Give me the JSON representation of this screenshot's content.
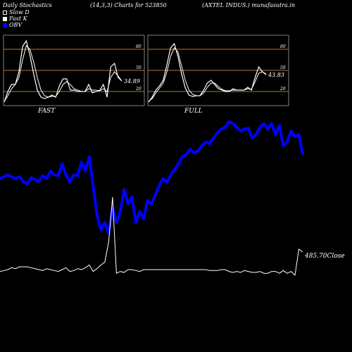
{
  "header": {
    "left": "Daily Stochastics",
    "center": "(14,3,3) Charts for 523850",
    "right": "(AXTEL INDUS.) munafasutra.in"
  },
  "legend": [
    {
      "label": "Slow  D",
      "icon": "hollow-square-icon"
    },
    {
      "label": "Fast K",
      "icon": "filled-square-icon"
    },
    {
      "label": "OBV",
      "icon": "blue-square-icon"
    }
  ],
  "colors": {
    "background": "#000000",
    "stoch": "#ffffff",
    "obv": "#0000ff",
    "levels": "#b87333",
    "panel_border": "#808080"
  },
  "chart_data": [
    {
      "type": "line",
      "title": "FAST",
      "ylim": [
        0,
        100
      ],
      "levels": [
        20,
        50,
        80
      ],
      "tick_labels": [
        "80",
        "50",
        "20"
      ],
      "last_value_label": "34.89",
      "series": [
        {
          "name": "Fast K",
          "values": [
            5,
            20,
            30,
            30,
            48,
            84,
            92,
            72,
            45,
            22,
            12,
            10,
            12,
            15,
            12,
            28,
            38,
            38,
            22,
            22,
            20,
            20,
            20,
            30,
            18,
            20,
            22,
            30,
            12,
            55,
            60,
            40,
            35
          ]
        },
        {
          "name": "Slow  D",
          "values": [
            6,
            14,
            24,
            30,
            40,
            65,
            85,
            80,
            62,
            40,
            22,
            14,
            12,
            13,
            13,
            20,
            30,
            34,
            30,
            24,
            22,
            20,
            20,
            24,
            22,
            22,
            21,
            24,
            20,
            40,
            48,
            42,
            35
          ]
        }
      ]
    },
    {
      "type": "line",
      "title": "FULL",
      "ylim": [
        0,
        100
      ],
      "levels": [
        20,
        50,
        80
      ],
      "tick_labels": [
        "80",
        "50",
        "20"
      ],
      "last_value_label": "43.83",
      "series": [
        {
          "name": "Fast K",
          "values": [
            5,
            12,
            22,
            28,
            36,
            58,
            82,
            88,
            70,
            45,
            25,
            15,
            13,
            14,
            14,
            22,
            32,
            36,
            30,
            24,
            22,
            20,
            20,
            24,
            22,
            22,
            22,
            26,
            22,
            40,
            55,
            48,
            44
          ]
        },
        {
          "name": "Slow  D",
          "values": [
            6,
            10,
            18,
            25,
            32,
            48,
            70,
            82,
            76,
            56,
            36,
            22,
            16,
            14,
            14,
            18,
            26,
            32,
            32,
            27,
            23,
            21,
            21,
            22,
            22,
            22,
            22,
            24,
            23,
            34,
            46,
            48,
            45
          ]
        }
      ]
    },
    {
      "type": "line",
      "series": [
        {
          "name": "OBV",
          "values": [
            320,
            325,
            330,
            325,
            320,
            325,
            312,
            305,
            322,
            318,
            312,
            328,
            320,
            340,
            330,
            328,
            360,
            330,
            310,
            330,
            328,
            365,
            340,
            380,
            300,
            220,
            180,
            200,
            170,
            240,
            200,
            230,
            290,
            250,
            270,
            200,
            230,
            210,
            260,
            250,
            275,
            300,
            320,
            310,
            330,
            345,
            360,
            380,
            385,
            400,
            390,
            395,
            410,
            420,
            415,
            430,
            445,
            455,
            460,
            475,
            470,
            460,
            450,
            455,
            458,
            430,
            440,
            460,
            470,
            455,
            470,
            440,
            465,
            410,
            420,
            450,
            435,
            440,
            385
          ]
        },
        {
          "name": "Close",
          "values": [
            20,
            21,
            22,
            24,
            23,
            25,
            25,
            25,
            24,
            23,
            22,
            21,
            23,
            22,
            21,
            20,
            22,
            24,
            20,
            21,
            23,
            22,
            24,
            27,
            20,
            23,
            27,
            30,
            52,
            100,
            18,
            20,
            19,
            22,
            22,
            21,
            20,
            22,
            22,
            22,
            22,
            22,
            22,
            22,
            22,
            22,
            22,
            22,
            22,
            22,
            22,
            22,
            22,
            22,
            21,
            21,
            21,
            22,
            22,
            20,
            19,
            20,
            19,
            21,
            20,
            19,
            19,
            20,
            18,
            18,
            20,
            20,
            18,
            21,
            18,
            20,
            16,
            44,
            41
          ]
        }
      ],
      "close_label": "485.70Close"
    }
  ]
}
